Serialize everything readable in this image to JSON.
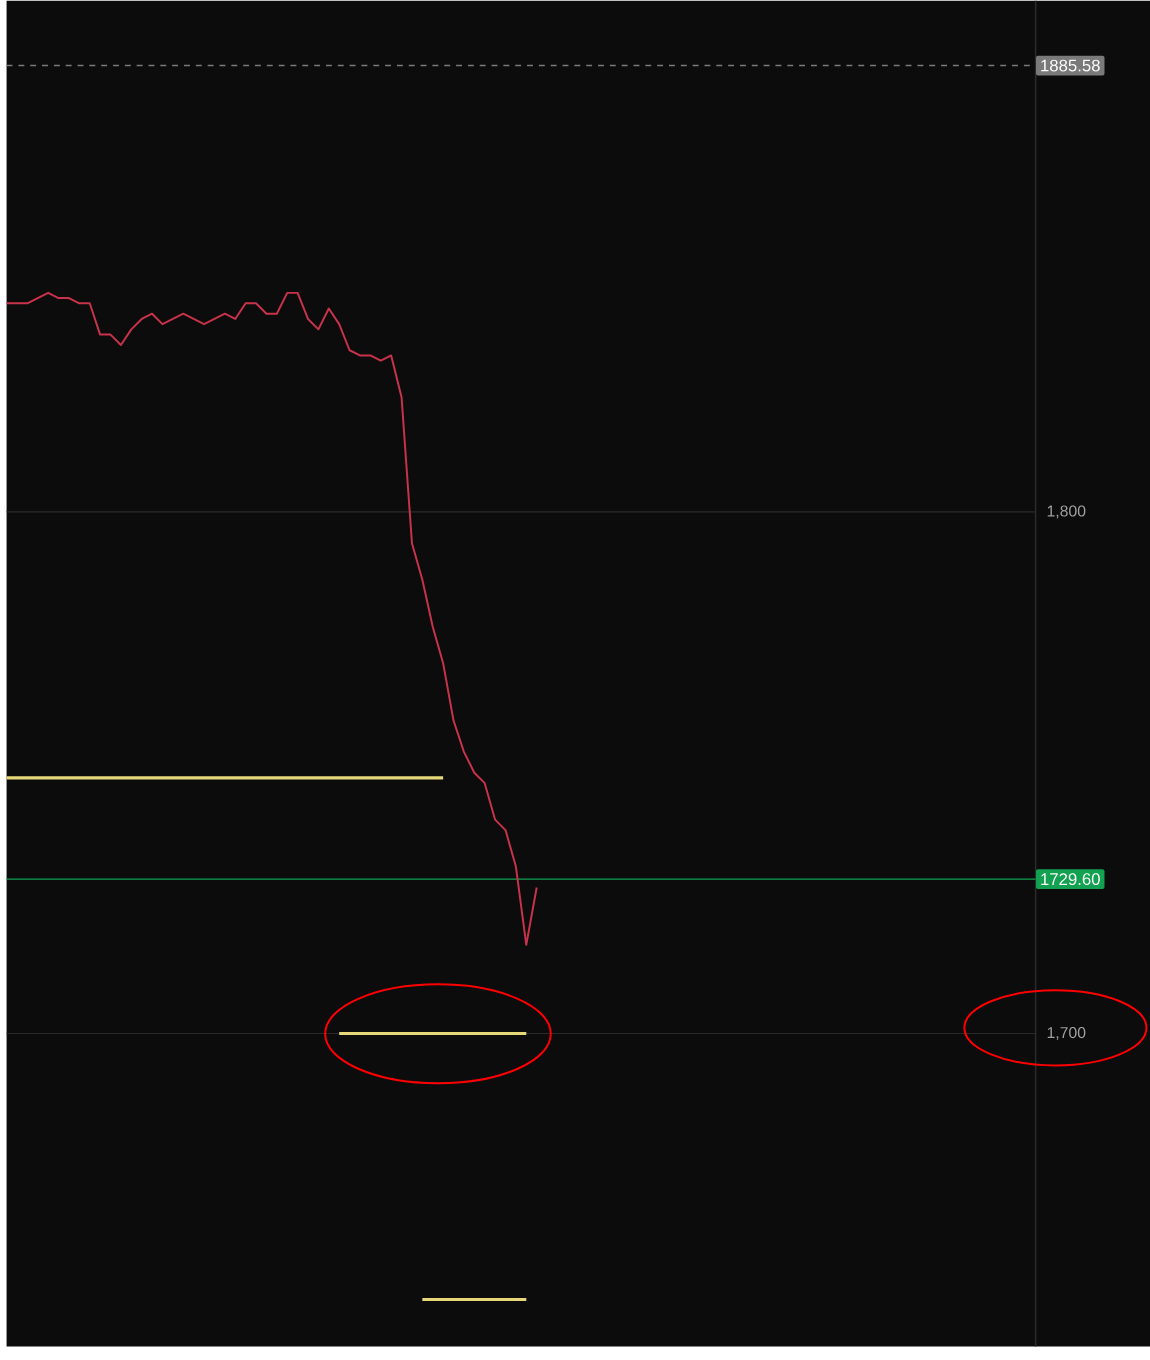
{
  "chart_data": {
    "type": "line",
    "categories": [
      null,
      null,
      null,
      null,
      null,
      null,
      null,
      null,
      null,
      null,
      null,
      null,
      null,
      null,
      null,
      null,
      null,
      null,
      null,
      null,
      null,
      null,
      null,
      null,
      null,
      null,
      null,
      null,
      null,
      null,
      null,
      null,
      null,
      null,
      null,
      null,
      null,
      null,
      null,
      null,
      null,
      null,
      null,
      null,
      null,
      null,
      null,
      null,
      null,
      null,
      null,
      null,
      null,
      null,
      null,
      null,
      null,
      null,
      null,
      null,
      null,
      null,
      null,
      null,
      null,
      null,
      null,
      null,
      null,
      null,
      null,
      null,
      null,
      null,
      null,
      null,
      null,
      null,
      null,
      null,
      null,
      null,
      null,
      null,
      null,
      null,
      null,
      null,
      null,
      null,
      null,
      null,
      null,
      null,
      null,
      null,
      null,
      null,
      null,
      null
    ],
    "ylim": [
      1640,
      1898
    ],
    "yticks": [
      {
        "value": 1800,
        "label": "1,800"
      },
      {
        "value": 1700,
        "label": "1,700"
      }
    ],
    "tick_labels": "y",
    "grid": "y",
    "series": [
      {
        "color": "#e6d878",
        "values": [
          1749,
          1749,
          1749,
          1749,
          1749,
          1749,
          1749,
          1749,
          1749,
          1749,
          1749,
          1749,
          1749,
          1749,
          1749,
          1749,
          1749,
          1749,
          1749,
          1749,
          1749,
          1749,
          1749,
          1749,
          1749,
          1749,
          1749,
          1749,
          1749,
          1749,
          1749,
          1749,
          1749,
          1749,
          1749,
          1749,
          1749,
          1749,
          1749,
          1749,
          1749,
          1749,
          1749,
          null,
          null,
          null,
          null,
          null,
          null,
          null,
          null,
          null,
          null,
          null,
          null,
          null,
          null,
          null,
          null,
          null,
          null,
          null,
          null,
          null,
          null,
          null,
          null,
          null,
          null,
          null,
          null,
          null,
          null,
          null,
          null,
          null,
          null,
          null,
          null,
          null,
          null,
          null,
          null,
          null,
          null,
          null,
          null,
          null,
          null,
          null,
          null,
          null,
          null,
          null,
          null,
          null,
          null,
          null,
          null,
          null
        ]
      },
      {
        "color": "#e6d878",
        "values": [
          null,
          null,
          null,
          null,
          null,
          null,
          null,
          null,
          null,
          null,
          null,
          null,
          null,
          null,
          null,
          null,
          null,
          null,
          null,
          null,
          null,
          null,
          null,
          null,
          null,
          null,
          null,
          null,
          null,
          null,
          null,
          null,
          1700,
          1700,
          1700,
          1700,
          1700,
          1700,
          1700,
          1700,
          1700,
          1700,
          1700,
          1700,
          1700,
          1700,
          1700,
          1700,
          1700,
          1700,
          1700,
          null,
          null,
          null,
          null,
          null,
          null,
          null,
          null,
          null,
          null,
          null,
          null,
          null,
          null,
          null,
          null,
          null,
          null,
          null,
          null,
          null,
          null,
          null,
          null,
          null,
          null,
          null,
          null,
          null,
          null,
          null,
          null,
          null,
          null,
          null,
          null,
          null,
          null,
          null,
          null,
          null,
          null,
          null,
          null,
          null,
          null,
          null,
          null,
          null
        ]
      },
      {
        "color": "#e6d878",
        "values": [
          null,
          null,
          null,
          null,
          null,
          null,
          null,
          null,
          null,
          null,
          null,
          null,
          null,
          null,
          null,
          null,
          null,
          null,
          null,
          null,
          null,
          null,
          null,
          null,
          null,
          null,
          null,
          null,
          null,
          null,
          null,
          null,
          null,
          null,
          null,
          null,
          null,
          null,
          null,
          null,
          1649,
          1649,
          1649,
          1649,
          1649,
          1649,
          1649,
          1649,
          1649,
          1649,
          1649,
          null,
          null,
          null,
          null,
          null,
          null,
          null,
          null,
          null,
          null,
          null,
          null,
          null,
          null,
          null,
          null,
          null,
          null,
          null,
          null,
          null,
          null,
          null,
          null,
          null,
          null,
          null,
          null,
          null,
          null,
          null,
          null,
          null,
          null,
          null,
          null,
          null,
          null,
          null,
          null,
          null,
          null,
          null,
          null,
          null,
          null,
          null,
          null,
          null
        ]
      },
      {
        "color": "#c8334b",
        "values": [
          1840,
          1840,
          1840,
          1841,
          1842,
          1841,
          1841,
          1840,
          1840,
          1834,
          1834,
          1832,
          1835,
          1837,
          1838,
          1836,
          1837,
          1838,
          1837,
          1836,
          1837,
          1838,
          1837,
          1840,
          1840,
          1838,
          1838,
          1842,
          1842,
          1837,
          1835,
          1839,
          1836,
          1831,
          1830,
          1830,
          1829,
          1830,
          1822,
          1794,
          1787,
          1778,
          1771,
          1760,
          1754,
          1750,
          1748,
          1741,
          1739,
          1732,
          1717,
          1728,
          null,
          null,
          null,
          null,
          null,
          null,
          null,
          null,
          null,
          null,
          null,
          null,
          null,
          null,
          null,
          null,
          null,
          null,
          null,
          null,
          null,
          null,
          null,
          null,
          null,
          null,
          null,
          null,
          null,
          null,
          null,
          null,
          null,
          null,
          null,
          null,
          null,
          null,
          null,
          null,
          null,
          null,
          null,
          null,
          null,
          null,
          null,
          null
        ]
      }
    ],
    "ref_lines": [
      {
        "axis": "y",
        "value": 1885.58,
        "label": "1885.58",
        "color": "#7a7a7a",
        "line_style": "dashed"
      },
      {
        "axis": "y",
        "value": 1729.6,
        "label": "1729.60",
        "color": "#12a150",
        "line_style": "solid"
      }
    ]
  }
}
